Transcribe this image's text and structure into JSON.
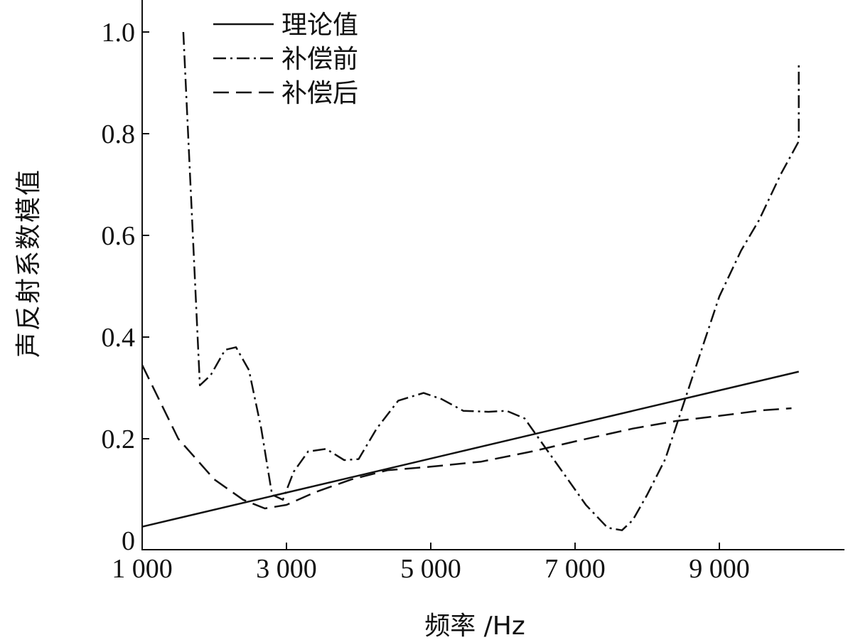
{
  "chart_data": {
    "type": "line",
    "xlabel": "频率 /Hz",
    "ylabel": "声反射系数模值",
    "xlim": [
      1000,
      10800
    ],
    "ylim": [
      0,
      1.0
    ],
    "x_ticks": [
      {
        "value": 1000,
        "label": "1 000"
      },
      {
        "value": 3000,
        "label": "3 000"
      },
      {
        "value": 5000,
        "label": "5 000"
      },
      {
        "value": 7000,
        "label": "7 000"
      },
      {
        "value": 9000,
        "label": "9 000"
      }
    ],
    "y_ticks": [
      {
        "value": 0,
        "label": "0"
      },
      {
        "value": 0.2,
        "label": "0.2"
      },
      {
        "value": 0.4,
        "label": "0.4"
      },
      {
        "value": 0.6,
        "label": "0.6"
      },
      {
        "value": 0.8,
        "label": "0.8"
      },
      {
        "value": 1.0,
        "label": "1.0"
      }
    ],
    "grid": false,
    "legend_position": "top-center",
    "series": [
      {
        "name": "理论值",
        "style": "solid",
        "x": [
          1000,
          10100
        ],
        "y": [
          0.027,
          0.332
        ]
      },
      {
        "name": "补偿前",
        "style": "dashdot",
        "x": [
          1570,
          1800,
          1950,
          2150,
          2300,
          2480,
          2650,
          2800,
          2950,
          3100,
          3300,
          3550,
          3800,
          4000,
          4250,
          4550,
          4900,
          5150,
          5450,
          5800,
          6050,
          6300,
          6550,
          6850,
          7150,
          7450,
          7650,
          7800,
          8000,
          8250,
          8600,
          9000,
          9300,
          9550,
          9850,
          10100,
          10100
        ],
        "y": [
          1.0,
          0.305,
          0.325,
          0.375,
          0.38,
          0.335,
          0.22,
          0.09,
          0.08,
          0.135,
          0.175,
          0.18,
          0.158,
          0.16,
          0.22,
          0.275,
          0.29,
          0.278,
          0.255,
          0.253,
          0.255,
          0.24,
          0.19,
          0.13,
          0.07,
          0.025,
          0.02,
          0.04,
          0.09,
          0.16,
          0.31,
          0.48,
          0.57,
          0.63,
          0.72,
          0.785,
          0.94
        ]
      },
      {
        "name": "补偿后",
        "style": "dashed",
        "x": [
          1000,
          1500,
          2000,
          2400,
          2700,
          3000,
          3400,
          3900,
          4400,
          5000,
          5700,
          6400,
          7100,
          7800,
          8400,
          9000,
          9600,
          10000
        ],
        "y": [
          0.345,
          0.2,
          0.12,
          0.08,
          0.063,
          0.07,
          0.095,
          0.12,
          0.138,
          0.145,
          0.155,
          0.175,
          0.198,
          0.22,
          0.235,
          0.245,
          0.256,
          0.26
        ]
      }
    ]
  }
}
